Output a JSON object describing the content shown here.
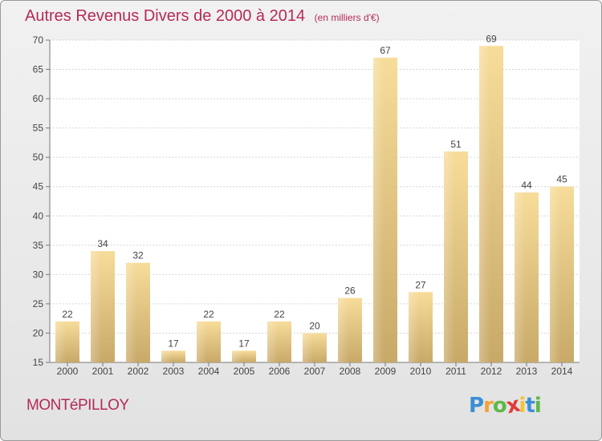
{
  "chart_data": {
    "type": "bar",
    "title": "Autres Revenus Divers de 2000 à 2014",
    "subtitle": "(en milliers d'€)",
    "xlabel": "",
    "ylabel": "",
    "categories": [
      "2000",
      "2001",
      "2002",
      "2003",
      "2004",
      "2005",
      "2006",
      "2007",
      "2008",
      "2009",
      "2010",
      "2011",
      "2012",
      "2013",
      "2014"
    ],
    "values": [
      22,
      34,
      32,
      17,
      22,
      17,
      22,
      20,
      26,
      67,
      27,
      51,
      69,
      44,
      45
    ],
    "data_labels": [
      "22",
      "34",
      "32",
      "17",
      "22",
      "17",
      "22",
      "20",
      "26",
      "67",
      "27",
      "51",
      "69",
      "44",
      "45"
    ],
    "ylim": [
      15,
      70
    ],
    "yticks": [
      15,
      20,
      25,
      30,
      35,
      40,
      45,
      50,
      55,
      60,
      65,
      70
    ],
    "grid": true,
    "legend": "none",
    "colors": {
      "bar_light": "#f7dc9a",
      "bar_dark": "#c8a968",
      "title": "#b52a5a"
    }
  },
  "footer": {
    "commune": "MONTéPILLOY",
    "logo": [
      "P",
      "r",
      "o",
      "x",
      "i",
      "t",
      "i"
    ],
    "logo_colors": [
      "#3a8fd6",
      "#f2a33a",
      "#5db848",
      "#e23b3b",
      "#f2c531",
      "#3a8fd6",
      "#5db848"
    ]
  }
}
